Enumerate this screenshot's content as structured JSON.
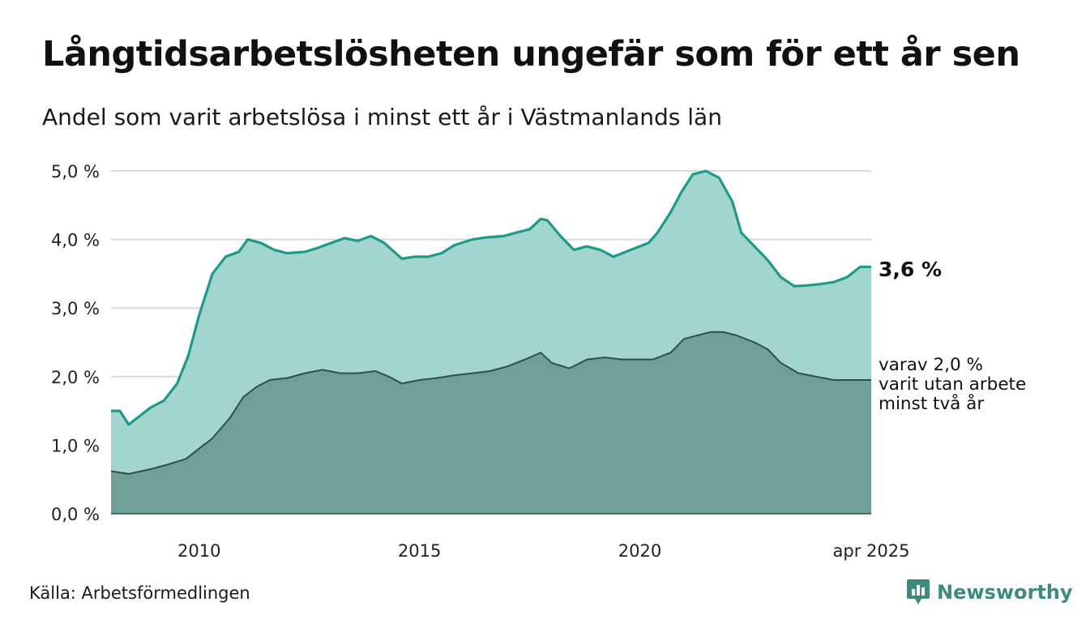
{
  "title": "Långtidsarbetslösheten ungefär som för ett år sen",
  "subtitle": "Andel som varit arbetslösa i minst ett år i Västmanlands län",
  "source": "Källa: Arbetsförmedlingen",
  "brand": "Newsworthy",
  "colors": {
    "total_fill": "#a3d5cf",
    "total_line": "#1e9a88",
    "sub_fill": "#6f9f97",
    "sub_line": "#2f4f49",
    "grid": "#d9d9d9"
  },
  "chart_data": {
    "type": "area",
    "xlim": [
      2008.0,
      2025.25
    ],
    "ylim": [
      0,
      5
    ],
    "x_ticks": [
      {
        "x": 2010,
        "label": "2010"
      },
      {
        "x": 2015,
        "label": "2015"
      },
      {
        "x": 2020,
        "label": "2020"
      },
      {
        "x": 2025.25,
        "label": "apr 2025"
      }
    ],
    "y_ticks": [
      {
        "y": 0,
        "label": "0,0 %"
      },
      {
        "y": 1,
        "label": "1,0 %"
      },
      {
        "y": 2,
        "label": "2,0 %"
      },
      {
        "y": 3,
        "label": "3,0 %"
      },
      {
        "y": 4,
        "label": "4,0 %"
      },
      {
        "y": 5,
        "label": "5,0 %"
      }
    ],
    "grid": true,
    "series": [
      {
        "name": "total",
        "end_label": "3,6 %",
        "points": [
          [
            2008.0,
            1.5
          ],
          [
            2008.2,
            1.5
          ],
          [
            2008.4,
            1.3
          ],
          [
            2008.6,
            1.4
          ],
          [
            2008.9,
            1.55
          ],
          [
            2009.2,
            1.65
          ],
          [
            2009.5,
            1.9
          ],
          [
            2009.75,
            2.3
          ],
          [
            2010.0,
            2.9
          ],
          [
            2010.3,
            3.5
          ],
          [
            2010.6,
            3.75
          ],
          [
            2010.9,
            3.82
          ],
          [
            2011.1,
            4.0
          ],
          [
            2011.4,
            3.95
          ],
          [
            2011.7,
            3.85
          ],
          [
            2012.0,
            3.8
          ],
          [
            2012.4,
            3.82
          ],
          [
            2012.7,
            3.88
          ],
          [
            2013.0,
            3.95
          ],
          [
            2013.3,
            4.02
          ],
          [
            2013.6,
            3.98
          ],
          [
            2013.9,
            4.05
          ],
          [
            2014.2,
            3.95
          ],
          [
            2014.6,
            3.72
          ],
          [
            2014.9,
            3.75
          ],
          [
            2015.2,
            3.75
          ],
          [
            2015.5,
            3.8
          ],
          [
            2015.8,
            3.92
          ],
          [
            2016.2,
            4.0
          ],
          [
            2016.5,
            4.03
          ],
          [
            2016.9,
            4.05
          ],
          [
            2017.2,
            4.1
          ],
          [
            2017.5,
            4.15
          ],
          [
            2017.75,
            4.3
          ],
          [
            2017.9,
            4.28
          ],
          [
            2018.2,
            4.05
          ],
          [
            2018.5,
            3.85
          ],
          [
            2018.8,
            3.9
          ],
          [
            2019.1,
            3.85
          ],
          [
            2019.4,
            3.75
          ],
          [
            2019.8,
            3.85
          ],
          [
            2020.2,
            3.95
          ],
          [
            2020.4,
            4.1
          ],
          [
            2020.7,
            4.4
          ],
          [
            2020.95,
            4.7
          ],
          [
            2021.2,
            4.95
          ],
          [
            2021.5,
            5.0
          ],
          [
            2021.8,
            4.9
          ],
          [
            2022.1,
            4.55
          ],
          [
            2022.3,
            4.1
          ],
          [
            2022.6,
            3.9
          ],
          [
            2022.9,
            3.7
          ],
          [
            2023.2,
            3.45
          ],
          [
            2023.5,
            3.32
          ],
          [
            2023.8,
            3.33
          ],
          [
            2024.1,
            3.35
          ],
          [
            2024.4,
            3.38
          ],
          [
            2024.7,
            3.45
          ],
          [
            2025.0,
            3.6
          ],
          [
            2025.25,
            3.6
          ]
        ]
      },
      {
        "name": "two_years",
        "end_label": "varav 2,0 % varit utan arbete minst två år",
        "points": [
          [
            2008.0,
            0.62
          ],
          [
            2008.4,
            0.58
          ],
          [
            2008.9,
            0.65
          ],
          [
            2009.3,
            0.72
          ],
          [
            2009.7,
            0.8
          ],
          [
            2010.0,
            0.95
          ],
          [
            2010.3,
            1.1
          ],
          [
            2010.7,
            1.4
          ],
          [
            2011.0,
            1.7
          ],
          [
            2011.3,
            1.85
          ],
          [
            2011.6,
            1.95
          ],
          [
            2012.0,
            1.98
          ],
          [
            2012.4,
            2.05
          ],
          [
            2012.8,
            2.1
          ],
          [
            2013.2,
            2.05
          ],
          [
            2013.6,
            2.05
          ],
          [
            2014.0,
            2.08
          ],
          [
            2014.3,
            2.0
          ],
          [
            2014.6,
            1.9
          ],
          [
            2015.0,
            1.95
          ],
          [
            2015.4,
            1.98
          ],
          [
            2015.8,
            2.02
          ],
          [
            2016.2,
            2.05
          ],
          [
            2016.6,
            2.08
          ],
          [
            2017.0,
            2.15
          ],
          [
            2017.4,
            2.25
          ],
          [
            2017.75,
            2.35
          ],
          [
            2018.0,
            2.2
          ],
          [
            2018.4,
            2.12
          ],
          [
            2018.8,
            2.25
          ],
          [
            2019.2,
            2.28
          ],
          [
            2019.6,
            2.25
          ],
          [
            2020.0,
            2.25
          ],
          [
            2020.3,
            2.25
          ],
          [
            2020.7,
            2.35
          ],
          [
            2021.0,
            2.55
          ],
          [
            2021.3,
            2.6
          ],
          [
            2021.6,
            2.65
          ],
          [
            2021.9,
            2.65
          ],
          [
            2022.2,
            2.6
          ],
          [
            2022.6,
            2.5
          ],
          [
            2022.9,
            2.4
          ],
          [
            2023.2,
            2.2
          ],
          [
            2023.6,
            2.05
          ],
          [
            2024.0,
            2.0
          ],
          [
            2024.4,
            1.95
          ],
          [
            2024.8,
            1.95
          ],
          [
            2025.25,
            1.95
          ]
        ]
      }
    ]
  }
}
